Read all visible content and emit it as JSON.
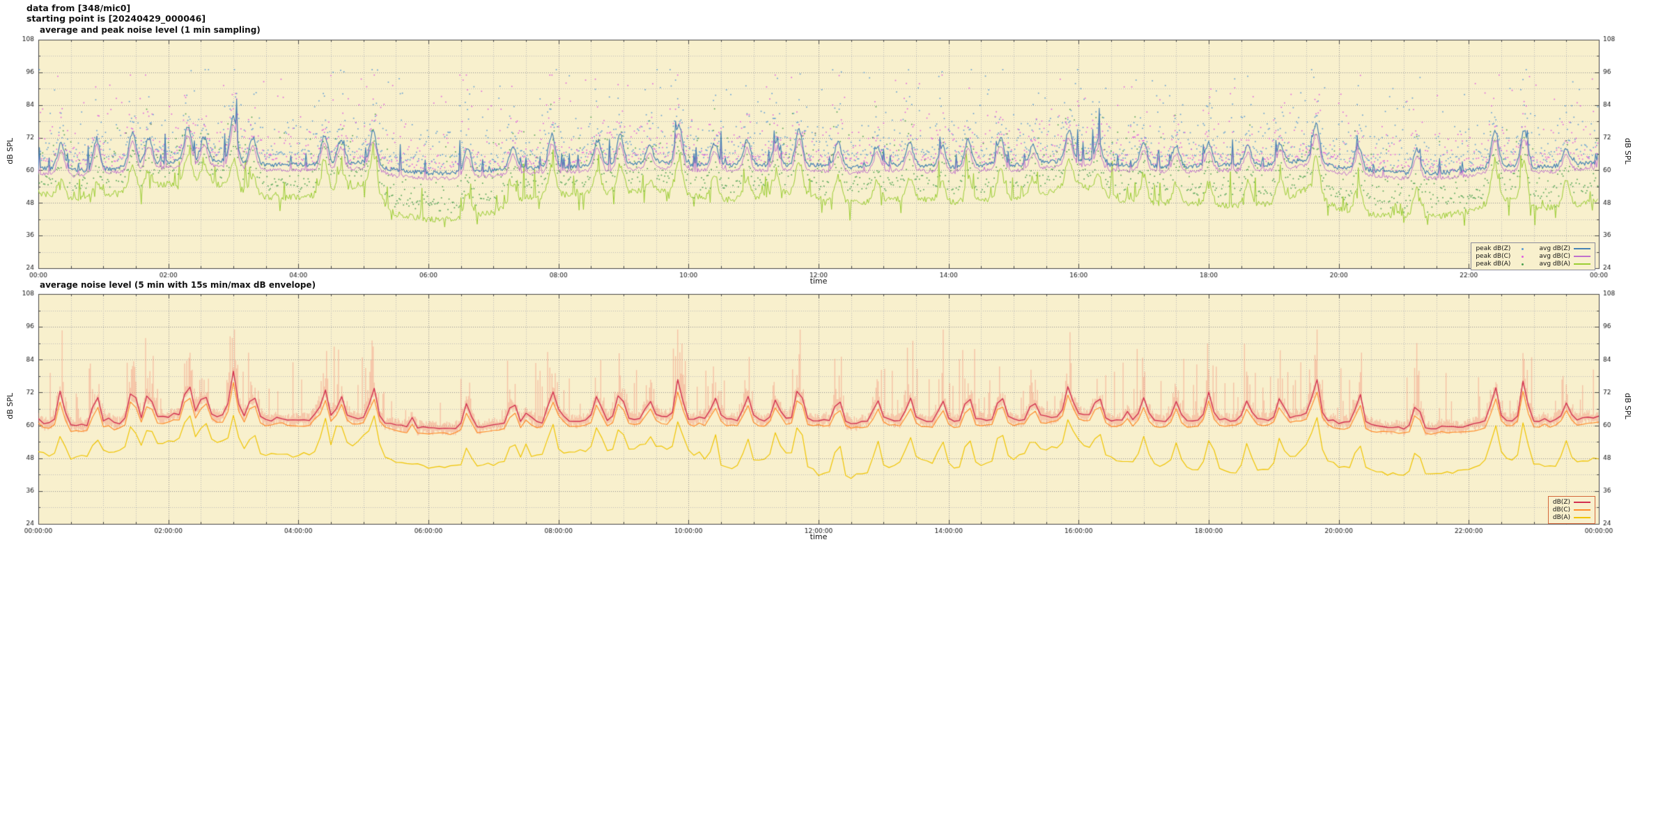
{
  "header": {
    "line1": "data from [348/mic0]",
    "line2": "starting point is [20240429_000046]"
  },
  "style": {
    "page_bg": "#ffffff",
    "plot_bg": "#f8f0cd",
    "grid_major": "#8f8f8f",
    "grid_minor": "#b9b9b9",
    "axis_border": "#444444",
    "text": "#111111",
    "legend1_border": "#8b8b9b",
    "legend2_border": "#d4663b"
  },
  "render": {
    "seed": 20240429
  },
  "chart_data": [
    {
      "id": "top",
      "type": "line",
      "title": "average and peak noise level (1 min sampling)",
      "xlabel": "time",
      "ylabel": "dB SPL",
      "ylabel_right": "dB SPL",
      "ylim": [
        24,
        108
      ],
      "y_ticks": [
        24,
        36,
        48,
        60,
        72,
        84,
        96,
        108
      ],
      "x_range_hours": 24,
      "x_tick_labels": [
        "00:00",
        "02:00",
        "04:00",
        "06:00",
        "08:00",
        "10:00",
        "12:00",
        "14:00",
        "16:00",
        "18:00",
        "20:00",
        "22:00",
        "00:00"
      ],
      "sampling_minutes": 1,
      "anchor_interval_hours": 0.5,
      "grid": true,
      "legend_position": "bottom-right",
      "series": [
        {
          "name": "peak dB(Z)",
          "style": "scatter",
          "color": "#5b9bd5"
        },
        {
          "name": "peak dB(C)",
          "style": "scatter",
          "color": "#e05fe0"
        },
        {
          "name": "peak dB(A)",
          "style": "scatter",
          "color": "#49a04f"
        },
        {
          "name": "avg dB(Z)",
          "style": "line",
          "color": "#4682b4",
          "anchors_dB": [
            61,
            60,
            60,
            62,
            63,
            64,
            63,
            62,
            62,
            62,
            63,
            60,
            59,
            59,
            60,
            61,
            61,
            62,
            62,
            63,
            62,
            62,
            62,
            62,
            62,
            61,
            62,
            62,
            61,
            62,
            62,
            63,
            64,
            62,
            62,
            61,
            62,
            62,
            62,
            64,
            61,
            60,
            59,
            59,
            60,
            62,
            61,
            62,
            63
          ]
        },
        {
          "name": "avg dB(C)",
          "style": "line",
          "color": "#c070cc",
          "anchors_dB": [
            59,
            58,
            59,
            60,
            61,
            62,
            61,
            60,
            60,
            60,
            61,
            58,
            57,
            57,
            58,
            59,
            59,
            60,
            60,
            61,
            60,
            60,
            60,
            60,
            60,
            59,
            60,
            60,
            59,
            60,
            60,
            61,
            62,
            60,
            60,
            59,
            60,
            60,
            60,
            62,
            59,
            58,
            57,
            57,
            58,
            60,
            59,
            60,
            61
          ]
        },
        {
          "name": "avg dB(A)",
          "style": "line",
          "color": "#9acd32",
          "anchors_dB": [
            52,
            49,
            51,
            53,
            55,
            56,
            54,
            50,
            50,
            52,
            55,
            44,
            42,
            42,
            45,
            50,
            51,
            52,
            52,
            53,
            51,
            49,
            50,
            52,
            50,
            48,
            49,
            50,
            48,
            49,
            50,
            52,
            55,
            50,
            48,
            48,
            47,
            47,
            48,
            53,
            46,
            44,
            43,
            43,
            45,
            50,
            46,
            47,
            49
          ]
        }
      ],
      "peak_events_format": [
        "time_hours",
        "peak_dBZ",
        "peak_dBA"
      ],
      "peak_events": [
        [
          0.35,
          70,
          58
        ],
        [
          0.9,
          71,
          56
        ],
        [
          1.45,
          74,
          62
        ],
        [
          1.7,
          72,
          60
        ],
        [
          2.3,
          76,
          66
        ],
        [
          2.55,
          72,
          62
        ],
        [
          3.0,
          80,
          64
        ],
        [
          3.3,
          72,
          58
        ],
        [
          4.4,
          73,
          64
        ],
        [
          4.65,
          71,
          60
        ],
        [
          5.15,
          74,
          66
        ],
        [
          6.6,
          68,
          52
        ],
        [
          7.3,
          69,
          55
        ],
        [
          7.9,
          73,
          62
        ],
        [
          8.6,
          71,
          60
        ],
        [
          8.95,
          73,
          62
        ],
        [
          9.4,
          69,
          56
        ],
        [
          9.85,
          77,
          64
        ],
        [
          10.4,
          70,
          58
        ],
        [
          10.9,
          71,
          57
        ],
        [
          11.35,
          70,
          58
        ],
        [
          11.7,
          75,
          63
        ],
        [
          12.3,
          70,
          57
        ],
        [
          12.9,
          69,
          56
        ],
        [
          13.4,
          70,
          57
        ],
        [
          13.9,
          69,
          56
        ],
        [
          14.3,
          71,
          58
        ],
        [
          14.8,
          72,
          60
        ],
        [
          15.3,
          69,
          56
        ],
        [
          15.85,
          75,
          64
        ],
        [
          16.3,
          71,
          58
        ],
        [
          17.0,
          70,
          57
        ],
        [
          17.5,
          69,
          55
        ],
        [
          18.0,
          70,
          56
        ],
        [
          18.6,
          69,
          55
        ],
        [
          19.1,
          70,
          57
        ],
        [
          19.65,
          77,
          65
        ],
        [
          20.3,
          69,
          55
        ],
        [
          21.2,
          68,
          53
        ],
        [
          22.4,
          74,
          62
        ],
        [
          22.85,
          75,
          63
        ],
        [
          23.5,
          68,
          56
        ]
      ]
    },
    {
      "id": "bottom",
      "type": "line",
      "title": "average noise level (5 min with 15s min/max dB envelope)",
      "xlabel": "time",
      "ylabel": "dB SPL",
      "ylabel_right": "dB SPL",
      "ylim": [
        24,
        108
      ],
      "y_ticks": [
        24,
        36,
        48,
        60,
        72,
        84,
        96,
        108
      ],
      "x_range_hours": 24,
      "x_tick_labels": [
        "00:00:00",
        "02:00:00",
        "04:00:00",
        "06:00:00",
        "08:00:00",
        "10:00:00",
        "12:00:00",
        "14:00:00",
        "16:00:00",
        "18:00:00",
        "20:00:00",
        "22:00:00",
        "00:00:00"
      ],
      "sampling_minutes": 5,
      "anchor_interval_hours": 0.5,
      "grid": true,
      "legend_position": "bottom-right",
      "envelope": {
        "label": "15s min/max",
        "color": "rgba(244,132,110,0.42)"
      },
      "series": [
        {
          "name": "dB(Z)",
          "style": "line",
          "color": "#d23050",
          "anchors_dB": [
            61,
            60,
            60,
            62,
            63,
            64,
            63,
            62,
            62,
            62,
            63,
            60,
            59,
            59,
            60,
            61,
            61,
            62,
            62,
            63,
            62,
            62,
            62,
            62,
            62,
            61,
            62,
            62,
            61,
            62,
            62,
            63,
            64,
            62,
            62,
            61,
            62,
            62,
            62,
            64,
            61,
            60,
            59,
            59,
            60,
            62,
            61,
            62,
            63
          ]
        },
        {
          "name": "dB(C)",
          "style": "line",
          "color": "#ff8c2a",
          "anchors_dB": [
            59,
            58,
            58,
            60,
            61,
            62,
            61,
            60,
            60,
            60,
            61,
            58,
            57,
            57,
            58,
            59,
            59,
            60,
            60,
            61,
            60,
            60,
            60,
            60,
            60,
            59,
            60,
            60,
            59,
            60,
            60,
            61,
            62,
            60,
            60,
            59,
            60,
            60,
            60,
            62,
            59,
            58,
            57,
            57,
            58,
            60,
            59,
            60,
            61
          ]
        },
        {
          "name": "dB(A)",
          "style": "line",
          "color": "#f0c400",
          "anchors_dB": [
            50,
            48,
            50,
            52,
            54,
            55,
            53,
            49,
            49,
            51,
            54,
            46,
            45,
            45,
            46,
            49,
            50,
            51,
            51,
            52,
            50,
            44,
            46,
            50,
            42,
            41,
            44,
            48,
            44,
            46,
            48,
            51,
            54,
            48,
            46,
            45,
            44,
            43,
            44,
            52,
            45,
            43,
            42,
            42,
            44,
            49,
            45,
            46,
            48
          ]
        }
      ],
      "peak_events_format": [
        "time_hours",
        "peak_dBZ",
        "peak_dBA"
      ],
      "peak_events": [
        [
          0.35,
          70,
          58
        ],
        [
          0.9,
          71,
          56
        ],
        [
          1.45,
          74,
          62
        ],
        [
          1.7,
          72,
          60
        ],
        [
          2.3,
          76,
          66
        ],
        [
          2.55,
          72,
          62
        ],
        [
          3.0,
          80,
          64
        ],
        [
          3.3,
          72,
          58
        ],
        [
          4.4,
          73,
          64
        ],
        [
          4.65,
          71,
          60
        ],
        [
          5.15,
          74,
          66
        ],
        [
          6.6,
          68,
          52
        ],
        [
          7.3,
          69,
          55
        ],
        [
          7.9,
          73,
          62
        ],
        [
          8.6,
          71,
          60
        ],
        [
          8.95,
          73,
          62
        ],
        [
          9.4,
          69,
          56
        ],
        [
          9.85,
          77,
          64
        ],
        [
          10.4,
          70,
          58
        ],
        [
          10.9,
          71,
          57
        ],
        [
          11.35,
          70,
          58
        ],
        [
          11.7,
          75,
          63
        ],
        [
          12.3,
          70,
          57
        ],
        [
          12.9,
          69,
          56
        ],
        [
          13.4,
          70,
          57
        ],
        [
          13.9,
          69,
          56
        ],
        [
          14.3,
          71,
          58
        ],
        [
          14.8,
          72,
          60
        ],
        [
          15.3,
          69,
          56
        ],
        [
          15.85,
          75,
          64
        ],
        [
          16.3,
          71,
          58
        ],
        [
          17.0,
          70,
          57
        ],
        [
          17.5,
          69,
          55
        ],
        [
          18.0,
          70,
          56
        ],
        [
          18.6,
          69,
          55
        ],
        [
          19.1,
          70,
          57
        ],
        [
          19.65,
          77,
          65
        ],
        [
          20.3,
          69,
          55
        ],
        [
          21.2,
          68,
          53
        ],
        [
          22.4,
          74,
          62
        ],
        [
          22.85,
          75,
          63
        ],
        [
          23.5,
          68,
          56
        ]
      ]
    }
  ]
}
